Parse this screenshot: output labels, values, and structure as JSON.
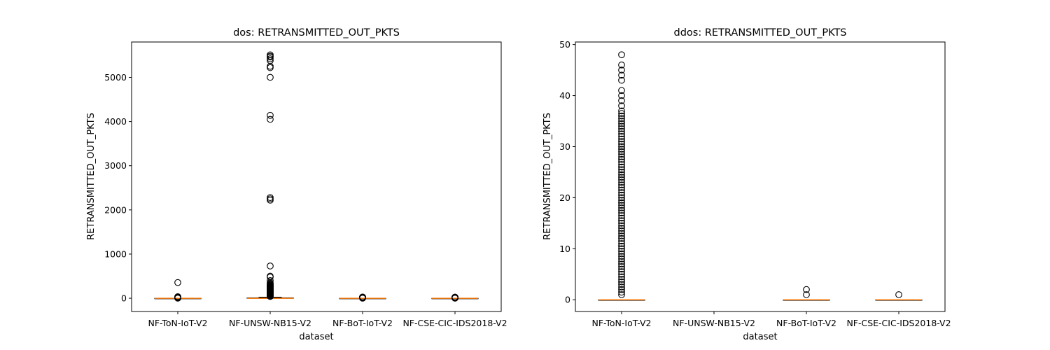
{
  "chart_data": [
    {
      "type": "box",
      "title": "dos: RETRANSMITTED_OUT_PKTS",
      "xlabel": "dataset",
      "ylabel": "RETRANSMITTED_OUT_PKTS",
      "ylim": [
        -300,
        5800
      ],
      "yticks": [
        0,
        1000,
        2000,
        3000,
        4000,
        5000
      ],
      "categories": [
        "NF-ToN-IoT-V2",
        "NF-UNSW-NB15-V2",
        "NF-BoT-IoT-V2",
        "NF-CSE-CIC-IDS2018-V2"
      ],
      "boxes": [
        {
          "q1": 0,
          "median": 0,
          "q3": 0,
          "whislo": 0,
          "whishi": 0,
          "fliers": [
            2,
            5,
            10,
            15,
            20,
            28,
            35,
            355
          ]
        },
        {
          "q1": 0,
          "median": 0,
          "q3": 10,
          "whislo": 0,
          "whishi": 25,
          "fliers": [
            40,
            50,
            60,
            70,
            80,
            90,
            100,
            110,
            120,
            130,
            140,
            150,
            160,
            170,
            180,
            190,
            200,
            210,
            220,
            230,
            240,
            250,
            260,
            270,
            280,
            290,
            300,
            310,
            330,
            350,
            400,
            480,
            500,
            730,
            2220,
            2250,
            2280,
            4050,
            4140,
            5000,
            5220,
            5250,
            5380,
            5420,
            5460,
            5480,
            5510
          ]
        },
        {
          "q1": 0,
          "median": 0,
          "q3": 0,
          "whislo": 0,
          "whishi": 0,
          "fliers": [
            2,
            4,
            6,
            8,
            10,
            12,
            14,
            16,
            18,
            20,
            22,
            24,
            26,
            28
          ]
        },
        {
          "q1": 0,
          "median": 0,
          "q3": 0,
          "whislo": 0,
          "whishi": 0,
          "fliers": [
            2,
            4,
            6,
            8,
            10,
            12,
            14,
            16,
            18,
            20,
            22,
            24,
            26
          ]
        }
      ]
    },
    {
      "type": "box",
      "title": "ddos: RETRANSMITTED_OUT_PKTS",
      "xlabel": "dataset",
      "ylabel": "RETRANSMITTED_OUT_PKTS",
      "ylim": [
        -2.3,
        50.5
      ],
      "yticks": [
        0,
        10,
        20,
        30,
        40,
        50
      ],
      "categories": [
        "NF-ToN-IoT-V2",
        "NF-UNSW-NB15-V2",
        "NF-BoT-IoT-V2",
        "NF-CSE-CIC-IDS2018-V2"
      ],
      "boxes": [
        {
          "q1": 0,
          "median": 0,
          "q3": 0,
          "whislo": 0,
          "whishi": 0,
          "fliers": [
            1,
            1.5,
            2,
            2.5,
            3,
            3.5,
            4,
            4.5,
            5,
            5.5,
            6,
            6.5,
            7,
            7.5,
            8,
            8.5,
            9,
            9.5,
            10,
            10.5,
            11,
            11.5,
            12,
            12.5,
            13,
            13.5,
            14,
            14.5,
            15,
            15.5,
            16,
            16.5,
            17,
            17.5,
            18,
            18.5,
            19,
            19.5,
            20,
            20.5,
            21,
            21.5,
            22,
            22.5,
            23,
            23.5,
            24,
            24.5,
            25,
            25.5,
            26,
            26.5,
            27,
            27.5,
            28,
            28.5,
            29,
            29.5,
            30,
            30.5,
            31,
            31.5,
            32,
            32.5,
            33,
            33.5,
            34,
            34.5,
            35,
            35.5,
            36,
            36.5,
            37,
            38,
            39,
            40,
            41,
            43,
            44,
            45,
            46,
            48
          ]
        },
        null,
        {
          "q1": 0,
          "median": 0,
          "q3": 0,
          "whislo": 0,
          "whishi": 0,
          "fliers": [
            1,
            2
          ]
        },
        {
          "q1": 0,
          "median": 0,
          "q3": 0,
          "whislo": 0,
          "whishi": 0,
          "fliers": [
            1
          ]
        }
      ]
    }
  ]
}
